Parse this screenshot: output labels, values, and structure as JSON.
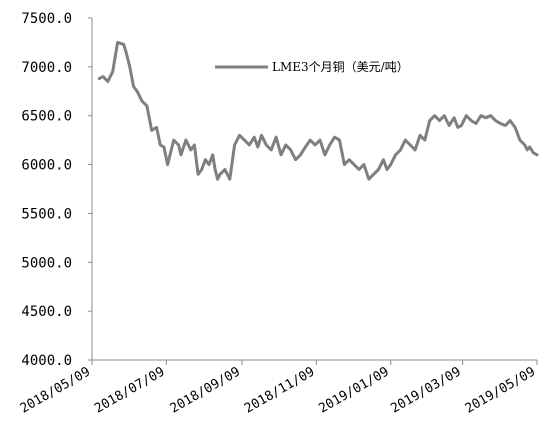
{
  "chart_data": {
    "type": "line",
    "title": "",
    "xlabel": "",
    "ylabel": "",
    "ylim": [
      4000,
      7500
    ],
    "y_ticks": [
      "4000.0",
      "4500.0",
      "5000.0",
      "5500.0",
      "6000.0",
      "6500.0",
      "7000.0",
      "7500.0"
    ],
    "x_ticks": [
      "2018/05/09",
      "2018/07/09",
      "2018/09/09",
      "2018/11/09",
      "2019/01/09",
      "2019/03/09",
      "2019/05/09"
    ],
    "x_range": [
      "2018/05/09",
      "2019/05/09"
    ],
    "grid": false,
    "legend_position": "top-right",
    "series": [
      {
        "name": "LME3个月铜（美元/吨）",
        "color": "#7f7f7f",
        "x": [
          "2018/05/15",
          "2018/05/18",
          "2018/05/22",
          "2018/05/26",
          "2018/05/30",
          "2018/06/04",
          "2018/06/06",
          "2018/06/09",
          "2018/06/12",
          "2018/06/15",
          "2018/06/19",
          "2018/06/23",
          "2018/06/27",
          "2018/07/01",
          "2018/07/04",
          "2018/07/07",
          "2018/07/10",
          "2018/07/15",
          "2018/07/19",
          "2018/07/21",
          "2018/07/25",
          "2018/07/29",
          "2018/08/01",
          "2018/08/04",
          "2018/08/07",
          "2018/08/10",
          "2018/08/13",
          "2018/08/16",
          "2018/08/18",
          "2018/08/20",
          "2018/08/22",
          "2018/08/26",
          "2018/08/30",
          "2018/09/03",
          "2018/09/07",
          "2018/09/11",
          "2018/09/15",
          "2018/09/19",
          "2018/09/22",
          "2018/09/25",
          "2018/09/29",
          "2018/10/03",
          "2018/10/07",
          "2018/10/11",
          "2018/10/15",
          "2018/10/19",
          "2018/10/23",
          "2018/10/27",
          "2018/10/31",
          "2018/11/04",
          "2018/11/08",
          "2018/11/12",
          "2018/11/16",
          "2018/11/20",
          "2018/11/24",
          "2018/11/28",
          "2018/12/02",
          "2018/12/06",
          "2018/12/10",
          "2018/12/14",
          "2018/12/18",
          "2018/12/22",
          "2018/12/26",
          "2018/12/30",
          "2019/01/03",
          "2019/01/06",
          "2019/01/09",
          "2019/01/13",
          "2019/01/17",
          "2019/01/21",
          "2019/01/25",
          "2019/01/29",
          "2019/02/02",
          "2019/02/06",
          "2019/02/10",
          "2019/02/14",
          "2019/02/18",
          "2019/02/22",
          "2019/02/26",
          "2019/03/02",
          "2019/03/05",
          "2019/03/08",
          "2019/03/12",
          "2019/03/16",
          "2019/03/20",
          "2019/03/24",
          "2019/03/28",
          "2019/04/01",
          "2019/04/05",
          "2019/04/09",
          "2019/04/13",
          "2019/04/17",
          "2019/04/21",
          "2019/04/25",
          "2019/04/29",
          "2019/05/01",
          "2019/05/03",
          "2019/05/06",
          "2019/05/09"
        ],
        "y": [
          6880,
          6900,
          6850,
          6950,
          7250,
          7230,
          7150,
          7000,
          6800,
          6750,
          6650,
          6600,
          6350,
          6380,
          6200,
          6180,
          6000,
          6250,
          6200,
          6100,
          6250,
          6150,
          6200,
          5900,
          5950,
          6050,
          6000,
          6100,
          5950,
          5850,
          5900,
          5950,
          5850,
          6200,
          6300,
          6250,
          6200,
          6280,
          6180,
          6300,
          6200,
          6150,
          6280,
          6100,
          6200,
          6150,
          6050,
          6100,
          6180,
          6250,
          6200,
          6250,
          6100,
          6200,
          6280,
          6250,
          6000,
          6050,
          6000,
          5950,
          6000,
          5850,
          5900,
          5950,
          6050,
          5950,
          6000,
          6100,
          6150,
          6250,
          6200,
          6150,
          6300,
          6250,
          6450,
          6500,
          6450,
          6500,
          6400,
          6480,
          6380,
          6400,
          6500,
          6450,
          6420,
          6500,
          6480,
          6500,
          6450,
          6420,
          6400,
          6450,
          6380,
          6250,
          6200,
          6150,
          6180,
          6120,
          6100
        ]
      }
    ]
  }
}
